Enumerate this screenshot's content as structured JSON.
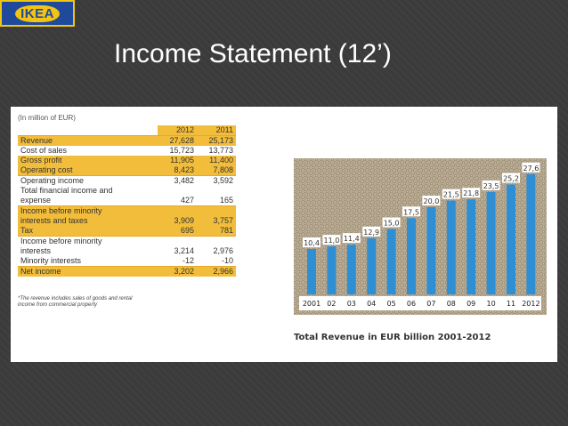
{
  "logo": {
    "text": "IKEA"
  },
  "slide": {
    "title": "Income Statement (12’)"
  },
  "income_table": {
    "caption": "(In million of EUR)",
    "years": [
      "2012",
      "2011"
    ],
    "rows": [
      {
        "label": "Revenue",
        "v2012": "27,628",
        "v2011": "25,173"
      },
      {
        "label": "Cost of sales",
        "v2012": "15,723",
        "v2011": "13,773"
      },
      {
        "label": "Gross profit",
        "v2012": "11,905",
        "v2011": "11,400"
      },
      {
        "label": "Operating cost",
        "v2012": "8,423",
        "v2011": "7,808"
      },
      {
        "label": "Operating income",
        "v2012": "3,482",
        "v2011": "3,592"
      },
      {
        "label": "Total financial income and",
        "v2012": "",
        "v2011": ""
      },
      {
        "label": "expense",
        "v2012": "427",
        "v2011": "165"
      },
      {
        "label": "Income before minority",
        "v2012": "",
        "v2011": ""
      },
      {
        "label": "interests and taxes",
        "v2012": "3,909",
        "v2011": "3,757"
      },
      {
        "label": "Tax",
        "v2012": "695",
        "v2011": "781"
      },
      {
        "label": "Income before minority",
        "v2012": "",
        "v2011": ""
      },
      {
        "label": "interests",
        "v2012": "3,214",
        "v2011": "2,976"
      },
      {
        "label": "Minority interests",
        "v2012": "-12",
        "v2011": "-10"
      },
      {
        "label": "Net income",
        "v2012": "3,202",
        "v2011": "2,966"
      }
    ],
    "footnote_line1": "*The revenue includes sales of goods and rental",
    "footnote_line2": "income from commercial property"
  },
  "chart_data": {
    "type": "bar",
    "title": "Total Revenue in EUR billion 2001-2012",
    "categories": [
      "2001",
      "02",
      "03",
      "04",
      "05",
      "06",
      "07",
      "08",
      "09",
      "10",
      "11",
      "2012"
    ],
    "values": [
      10.4,
      11.0,
      11.4,
      12.9,
      15.0,
      17.5,
      20.0,
      21.5,
      21.8,
      23.5,
      25.2,
      27.6
    ],
    "data_labels": [
      "10,4",
      "11,0",
      "11,4",
      "12,9",
      "15,0",
      "17,5",
      "20,0",
      "21,5",
      "21,8",
      "23,5",
      "25,2",
      "27,6"
    ],
    "bar_color": "#2f8fd4",
    "background": "burlap texture"
  }
}
